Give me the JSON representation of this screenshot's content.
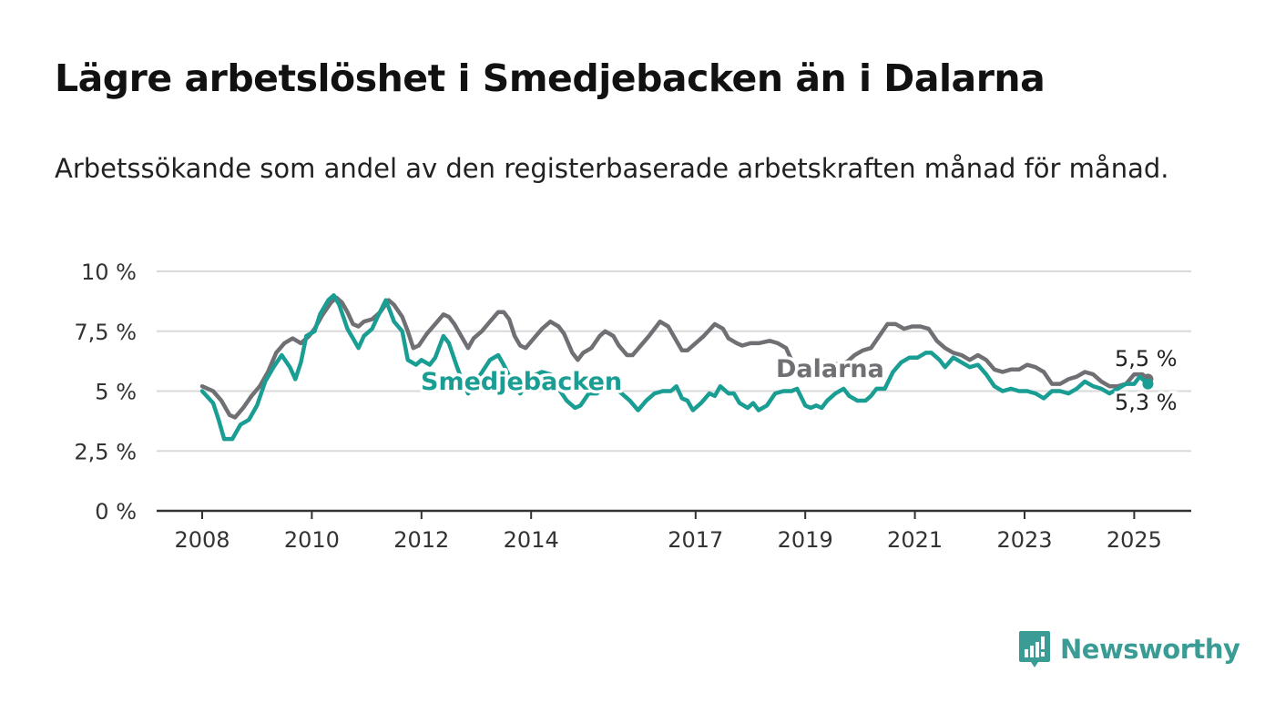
{
  "header": {
    "title": "Lägre arbetslöshet i Smedjebacken än i Dalarna",
    "subtitle": "Arbetssökande som andel av den registerbaserade arbetskraften månad för månad."
  },
  "brand": {
    "name": "Newsworthy",
    "color": "#3a9c95",
    "icon": "newsworthy-logo-icon"
  },
  "chart_data": {
    "type": "line",
    "title": "Lägre arbetslöshet i Smedjebacken än i Dalarna",
    "subtitle": "Arbetssökande som andel av den registerbaserade arbetskraften månad för månad.",
    "xlabel": "",
    "ylabel": "",
    "x_range": [
      2008,
      2025.3
    ],
    "ylim": [
      0,
      10
    ],
    "y_ticks": [
      0,
      2.5,
      5,
      7.5,
      10
    ],
    "y_tick_labels": [
      "0 %",
      "2,5 %",
      "5 %",
      "7,5 %",
      "10 %"
    ],
    "x_ticks": [
      2008,
      2010,
      2012,
      2014,
      2017,
      2019,
      2021,
      2023,
      2025
    ],
    "x_tick_labels": [
      "2008",
      "2010",
      "2012",
      "2014",
      "2017",
      "2019",
      "2021",
      "2023",
      "2025"
    ],
    "grid": true,
    "series": [
      {
        "name": "Dalarna",
        "color": "#707074",
        "end_label": "5,5 %",
        "points": [
          [
            2008.0,
            5.2
          ],
          [
            2008.2,
            5.0
          ],
          [
            2008.35,
            4.6
          ],
          [
            2008.5,
            4.0
          ],
          [
            2008.6,
            3.9
          ],
          [
            2008.75,
            4.3
          ],
          [
            2008.9,
            4.8
          ],
          [
            2009.05,
            5.2
          ],
          [
            2009.2,
            5.8
          ],
          [
            2009.35,
            6.6
          ],
          [
            2009.5,
            7.0
          ],
          [
            2009.65,
            7.2
          ],
          [
            2009.8,
            7.0
          ],
          [
            2009.95,
            7.3
          ],
          [
            2010.05,
            7.6
          ],
          [
            2010.2,
            8.2
          ],
          [
            2010.35,
            8.7
          ],
          [
            2010.45,
            8.9
          ],
          [
            2010.55,
            8.7
          ],
          [
            2010.65,
            8.3
          ],
          [
            2010.75,
            7.8
          ],
          [
            2010.85,
            7.7
          ],
          [
            2010.95,
            7.9
          ],
          [
            2011.1,
            8.0
          ],
          [
            2011.25,
            8.3
          ],
          [
            2011.4,
            8.8
          ],
          [
            2011.5,
            8.6
          ],
          [
            2011.65,
            8.1
          ],
          [
            2011.75,
            7.5
          ],
          [
            2011.85,
            6.8
          ],
          [
            2011.95,
            6.9
          ],
          [
            2012.1,
            7.4
          ],
          [
            2012.25,
            7.8
          ],
          [
            2012.4,
            8.2
          ],
          [
            2012.5,
            8.1
          ],
          [
            2012.6,
            7.8
          ],
          [
            2012.75,
            7.2
          ],
          [
            2012.85,
            6.8
          ],
          [
            2012.95,
            7.2
          ],
          [
            2013.1,
            7.5
          ],
          [
            2013.25,
            7.9
          ],
          [
            2013.4,
            8.3
          ],
          [
            2013.5,
            8.3
          ],
          [
            2013.6,
            8.0
          ],
          [
            2013.7,
            7.3
          ],
          [
            2013.8,
            6.9
          ],
          [
            2013.9,
            6.8
          ],
          [
            2014.05,
            7.2
          ],
          [
            2014.2,
            7.6
          ],
          [
            2014.35,
            7.9
          ],
          [
            2014.5,
            7.7
          ],
          [
            2014.6,
            7.4
          ],
          [
            2014.75,
            6.6
          ],
          [
            2014.85,
            6.3
          ],
          [
            2014.95,
            6.6
          ],
          [
            2015.1,
            6.8
          ],
          [
            2015.25,
            7.3
          ],
          [
            2015.35,
            7.5
          ],
          [
            2015.5,
            7.3
          ],
          [
            2015.6,
            6.9
          ],
          [
            2015.75,
            6.5
          ],
          [
            2015.85,
            6.5
          ],
          [
            2016.0,
            6.9
          ],
          [
            2016.15,
            7.3
          ],
          [
            2016.35,
            7.9
          ],
          [
            2016.5,
            7.7
          ],
          [
            2016.6,
            7.3
          ],
          [
            2016.75,
            6.7
          ],
          [
            2016.85,
            6.7
          ],
          [
            2017.0,
            7.0
          ],
          [
            2017.15,
            7.3
          ],
          [
            2017.35,
            7.8
          ],
          [
            2017.5,
            7.6
          ],
          [
            2017.6,
            7.2
          ],
          [
            2017.75,
            7.0
          ],
          [
            2017.85,
            6.9
          ],
          [
            2018.0,
            7.0
          ],
          [
            2018.15,
            7.0
          ],
          [
            2018.35,
            7.1
          ],
          [
            2018.5,
            7.0
          ],
          [
            2018.65,
            6.8
          ],
          [
            2018.75,
            6.3
          ],
          [
            2018.85,
            6.1
          ],
          [
            2019.5,
            6.1
          ],
          [
            2019.75,
            6.2
          ],
          [
            2019.9,
            6.5
          ],
          [
            2020.05,
            6.7
          ],
          [
            2020.2,
            6.8
          ],
          [
            2020.35,
            7.3
          ],
          [
            2020.5,
            7.8
          ],
          [
            2020.65,
            7.8
          ],
          [
            2020.8,
            7.6
          ],
          [
            2020.95,
            7.7
          ],
          [
            2021.1,
            7.7
          ],
          [
            2021.25,
            7.6
          ],
          [
            2021.4,
            7.1
          ],
          [
            2021.55,
            6.8
          ],
          [
            2021.7,
            6.6
          ],
          [
            2021.85,
            6.5
          ],
          [
            2022.0,
            6.3
          ],
          [
            2022.15,
            6.5
          ],
          [
            2022.3,
            6.3
          ],
          [
            2022.45,
            5.9
          ],
          [
            2022.6,
            5.8
          ],
          [
            2022.75,
            5.9
          ],
          [
            2022.9,
            5.9
          ],
          [
            2023.05,
            6.1
          ],
          [
            2023.2,
            6.0
          ],
          [
            2023.35,
            5.8
          ],
          [
            2023.5,
            5.3
          ],
          [
            2023.65,
            5.3
          ],
          [
            2023.8,
            5.5
          ],
          [
            2023.95,
            5.6
          ],
          [
            2024.1,
            5.8
          ],
          [
            2024.25,
            5.7
          ],
          [
            2024.4,
            5.4
          ],
          [
            2024.55,
            5.2
          ],
          [
            2024.7,
            5.2
          ],
          [
            2024.85,
            5.3
          ],
          [
            2025.0,
            5.7
          ],
          [
            2025.15,
            5.7
          ],
          [
            2025.25,
            5.5
          ]
        ]
      },
      {
        "name": "Smedjebacken",
        "color": "#1a9e94",
        "end_label": "5,3 %",
        "points": [
          [
            2008.0,
            5.0
          ],
          [
            2008.2,
            4.5
          ],
          [
            2008.3,
            3.8
          ],
          [
            2008.4,
            3.0
          ],
          [
            2008.55,
            3.0
          ],
          [
            2008.7,
            3.6
          ],
          [
            2008.85,
            3.8
          ],
          [
            2009.0,
            4.4
          ],
          [
            2009.15,
            5.4
          ],
          [
            2009.3,
            6.0
          ],
          [
            2009.45,
            6.5
          ],
          [
            2009.6,
            6.0
          ],
          [
            2009.7,
            5.5
          ],
          [
            2009.8,
            6.2
          ],
          [
            2009.9,
            7.3
          ],
          [
            2010.05,
            7.5
          ],
          [
            2010.15,
            8.2
          ],
          [
            2010.3,
            8.8
          ],
          [
            2010.4,
            9.0
          ],
          [
            2010.5,
            8.6
          ],
          [
            2010.65,
            7.6
          ],
          [
            2010.75,
            7.2
          ],
          [
            2010.85,
            6.8
          ],
          [
            2010.95,
            7.3
          ],
          [
            2011.1,
            7.6
          ],
          [
            2011.2,
            8.1
          ],
          [
            2011.35,
            8.8
          ],
          [
            2011.5,
            7.9
          ],
          [
            2011.65,
            7.5
          ],
          [
            2011.75,
            6.3
          ],
          [
            2011.9,
            6.1
          ],
          [
            2012.0,
            6.3
          ],
          [
            2012.15,
            6.1
          ],
          [
            2012.25,
            6.4
          ],
          [
            2012.4,
            7.3
          ],
          [
            2012.5,
            7.0
          ],
          [
            2012.65,
            6.0
          ],
          [
            2012.75,
            5.4
          ],
          [
            2012.85,
            4.9
          ],
          [
            2013.05,
            5.6
          ],
          [
            2013.25,
            6.3
          ],
          [
            2013.4,
            6.5
          ],
          [
            2013.5,
            6.1
          ],
          [
            2013.65,
            5.4
          ],
          [
            2013.8,
            4.9
          ],
          [
            2014.0,
            5.6
          ],
          [
            2014.2,
            5.8
          ],
          [
            2014.35,
            5.7
          ],
          [
            2014.5,
            5.1
          ],
          [
            2014.65,
            4.6
          ],
          [
            2014.8,
            4.3
          ],
          [
            2014.9,
            4.4
          ],
          [
            2015.05,
            4.9
          ],
          [
            2015.2,
            4.9
          ],
          [
            2015.35,
            5.3
          ],
          [
            2015.5,
            5.2
          ],
          [
            2015.65,
            4.9
          ],
          [
            2015.8,
            4.6
          ],
          [
            2015.95,
            4.2
          ],
          [
            2016.1,
            4.6
          ],
          [
            2016.25,
            4.9
          ],
          [
            2016.4,
            5.0
          ],
          [
            2016.55,
            5.0
          ],
          [
            2016.65,
            5.2
          ],
          [
            2016.75,
            4.7
          ],
          [
            2016.85,
            4.6
          ],
          [
            2016.95,
            4.2
          ],
          [
            2017.1,
            4.5
          ],
          [
            2017.25,
            4.9
          ],
          [
            2017.35,
            4.8
          ],
          [
            2017.45,
            5.2
          ],
          [
            2017.6,
            4.9
          ],
          [
            2017.7,
            4.9
          ],
          [
            2017.8,
            4.5
          ],
          [
            2017.95,
            4.3
          ],
          [
            2018.05,
            4.5
          ],
          [
            2018.15,
            4.2
          ],
          [
            2018.3,
            4.4
          ],
          [
            2018.45,
            4.9
          ],
          [
            2018.6,
            5.0
          ],
          [
            2018.75,
            5.0
          ],
          [
            2018.85,
            5.1
          ],
          [
            2019.0,
            4.4
          ],
          [
            2019.1,
            4.3
          ],
          [
            2019.2,
            4.4
          ],
          [
            2019.3,
            4.3
          ],
          [
            2019.4,
            4.6
          ],
          [
            2019.55,
            4.9
          ],
          [
            2019.7,
            5.1
          ],
          [
            2019.8,
            4.8
          ],
          [
            2019.95,
            4.6
          ],
          [
            2020.1,
            4.6
          ],
          [
            2020.2,
            4.8
          ],
          [
            2020.3,
            5.1
          ],
          [
            2020.45,
            5.1
          ],
          [
            2020.6,
            5.8
          ],
          [
            2020.75,
            6.2
          ],
          [
            2020.9,
            6.4
          ],
          [
            2021.05,
            6.4
          ],
          [
            2021.2,
            6.6
          ],
          [
            2021.3,
            6.6
          ],
          [
            2021.45,
            6.3
          ],
          [
            2021.55,
            6.0
          ],
          [
            2021.7,
            6.4
          ],
          [
            2021.85,
            6.2
          ],
          [
            2022.0,
            6.0
          ],
          [
            2022.15,
            6.1
          ],
          [
            2022.3,
            5.7
          ],
          [
            2022.45,
            5.2
          ],
          [
            2022.6,
            5.0
          ],
          [
            2022.75,
            5.1
          ],
          [
            2022.9,
            5.0
          ],
          [
            2023.05,
            5.0
          ],
          [
            2023.2,
            4.9
          ],
          [
            2023.35,
            4.7
          ],
          [
            2023.5,
            5.0
          ],
          [
            2023.65,
            5.0
          ],
          [
            2023.8,
            4.9
          ],
          [
            2023.95,
            5.1
          ],
          [
            2024.1,
            5.4
          ],
          [
            2024.25,
            5.2
          ],
          [
            2024.4,
            5.1
          ],
          [
            2024.55,
            4.9
          ],
          [
            2024.7,
            5.1
          ],
          [
            2024.85,
            5.3
          ],
          [
            2025.0,
            5.3
          ],
          [
            2025.1,
            5.6
          ],
          [
            2025.2,
            5.4
          ],
          [
            2025.25,
            5.3
          ]
        ]
      }
    ]
  }
}
